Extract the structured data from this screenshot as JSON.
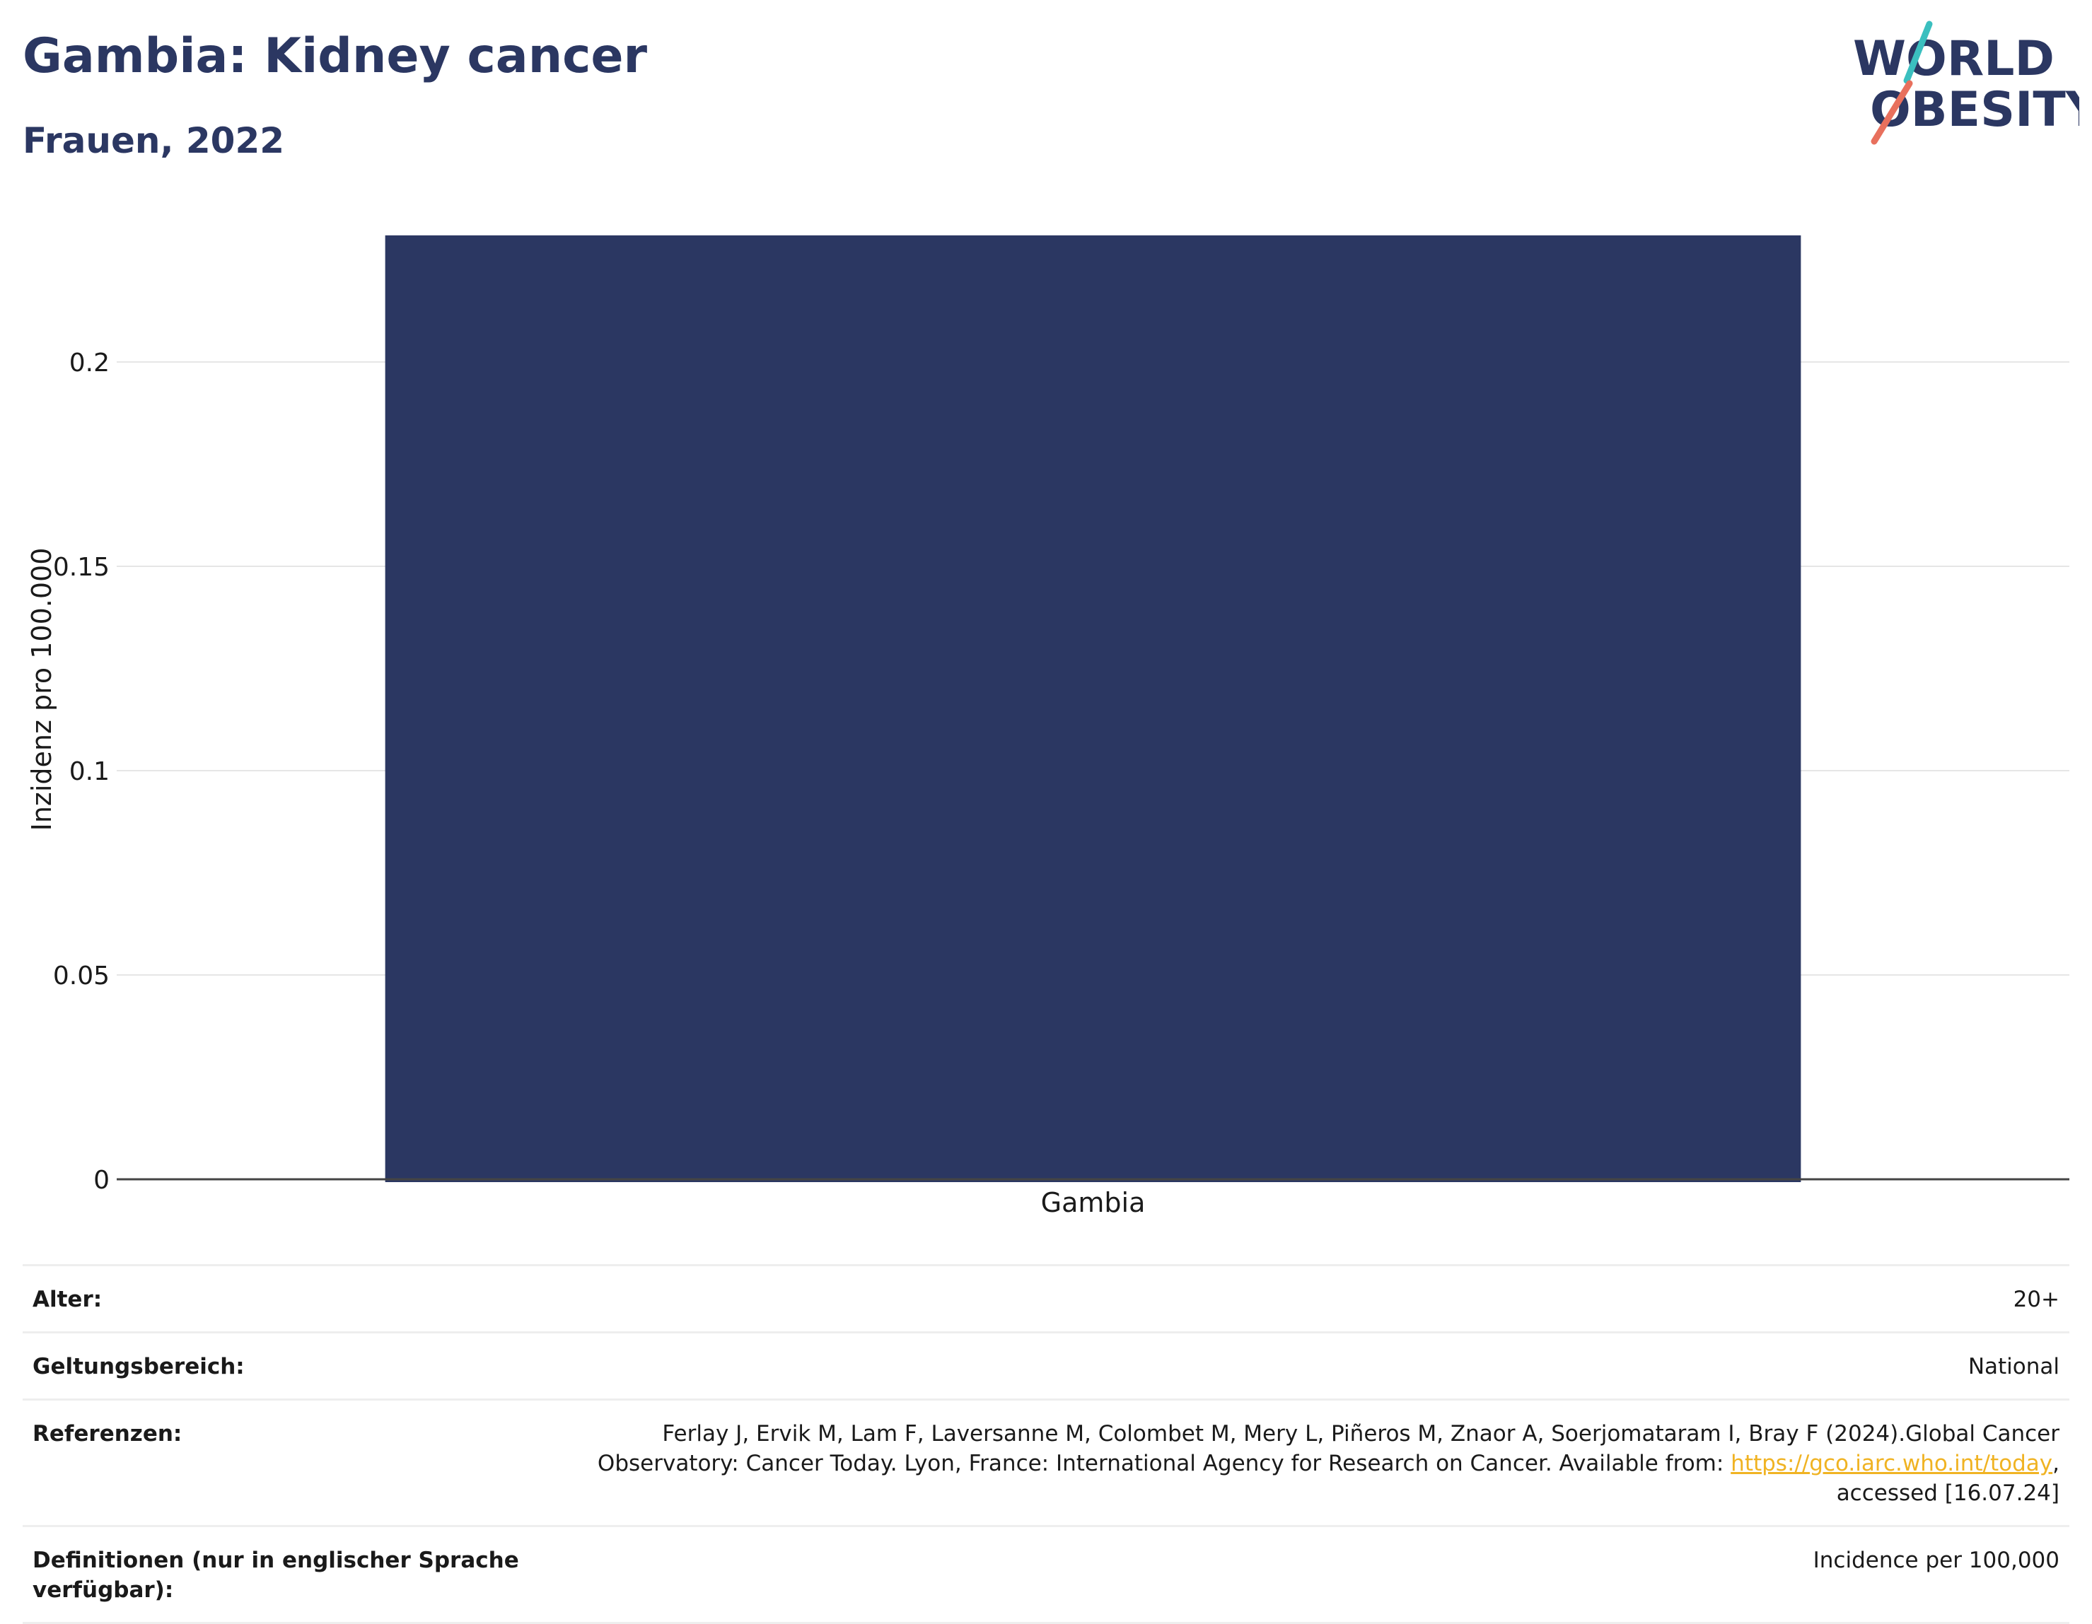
{
  "header": {
    "title": "Gambia: Kidney cancer",
    "subtitle": "Frauen, 2022"
  },
  "logo": {
    "line1": "WORLD",
    "line2": "OBESITY",
    "accent_teal": "#3bbfbf",
    "accent_coral": "#e8705d"
  },
  "colors": {
    "bar": "#2b3762",
    "text": "#2b3762",
    "grid": "#e6e6e6"
  },
  "chart_data": {
    "type": "bar",
    "categories": [
      "Gambia"
    ],
    "values": [
      0.231
    ],
    "ylabel": "Inzidenz pro 100.000",
    "xlabel": "",
    "ylim": [
      0,
      0.2315
    ],
    "yticks": [
      0,
      0.05,
      0.1,
      0.15,
      0.2
    ],
    "ytick_labels": [
      "0",
      "0.05",
      "0.1",
      "0.15",
      "0.2"
    ],
    "grid": true
  },
  "meta": {
    "rows": [
      {
        "label": "Alter:",
        "value": "20+"
      },
      {
        "label": "Geltungsbereich:",
        "value": "National"
      },
      {
        "label": "Referenzen:",
        "value_pre": "Ferlay J, Ervik M, Lam F, Laversanne M, Colombet M, Mery L, Piñeros M, Znaor A, Soerjomataram I, Bray F (2024).Global Cancer Observatory: Cancer Today. Lyon, France: International Agency for Research on Cancer. Available from: ",
        "link": "https://gco.iarc.who.int/today",
        "value_post": ", accessed [16.07.24]"
      },
      {
        "label": "Definitionen (nur in englischer Sprache verfügbar):",
        "value": "Incidence per 100,000"
      }
    ]
  }
}
